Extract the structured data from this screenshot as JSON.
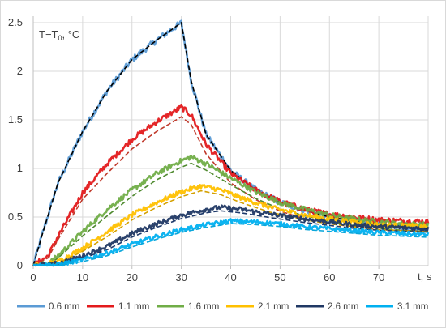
{
  "chart_data": {
    "type": "line",
    "title": "",
    "ylabel_main": "T−T",
    "ylabel_sub": "0",
    "ylabel_unit": ", °C",
    "xlabel": "t, s",
    "xlim": [
      0,
      80
    ],
    "ylim": [
      0,
      2.5
    ],
    "xticks": [
      0,
      10,
      20,
      30,
      40,
      50,
      60,
      70
    ],
    "yticks": [
      0,
      0.5,
      1,
      1.5,
      2,
      2.5
    ],
    "xtick_labels": [
      "0",
      "10",
      "20",
      "30",
      "40",
      "50",
      "60",
      "70"
    ],
    "ytick_labels": [
      "0",
      "0.5",
      "1",
      "1.5",
      "2",
      "2.5"
    ],
    "grid": true,
    "legend_position": "bottom",
    "series": [
      {
        "name": "0.6 mm",
        "color": "#5b9bd5",
        "model_color": "#000000",
        "peak": 2.5,
        "peak_t": 30.5,
        "tail": 0.38,
        "slope": 0.9,
        "rise_shape": "fast",
        "measured": [
          [
            0,
            0
          ],
          [
            2,
            0.35
          ],
          [
            5,
            0.85
          ],
          [
            10,
            1.38
          ],
          [
            15,
            1.8
          ],
          [
            20,
            2.12
          ],
          [
            25,
            2.32
          ],
          [
            30,
            2.5
          ],
          [
            32,
            1.9
          ],
          [
            35,
            1.35
          ],
          [
            40,
            0.98
          ],
          [
            45,
            0.78
          ],
          [
            50,
            0.65
          ],
          [
            55,
            0.57
          ],
          [
            60,
            0.5
          ],
          [
            65,
            0.46
          ],
          [
            70,
            0.43
          ],
          [
            75,
            0.4
          ],
          [
            80,
            0.38
          ]
        ]
      },
      {
        "name": "1.1 mm",
        "color": "#e31a1c",
        "model_color": "#c0392b",
        "peak": 1.65,
        "peak_t": 31,
        "tail": 0.45,
        "measured": [
          [
            0,
            0
          ],
          [
            3,
            0.1
          ],
          [
            5,
            0.3
          ],
          [
            10,
            0.75
          ],
          [
            15,
            1.05
          ],
          [
            20,
            1.3
          ],
          [
            25,
            1.48
          ],
          [
            30,
            1.63
          ],
          [
            32,
            1.55
          ],
          [
            35,
            1.25
          ],
          [
            40,
            0.95
          ],
          [
            45,
            0.78
          ],
          [
            50,
            0.66
          ],
          [
            55,
            0.58
          ],
          [
            60,
            0.53
          ],
          [
            65,
            0.5
          ],
          [
            70,
            0.47
          ],
          [
            75,
            0.46
          ],
          [
            80,
            0.45
          ]
        ]
      },
      {
        "name": "1.6 mm",
        "color": "#70ad47",
        "model_color": "#4f8a2f",
        "peak": 1.12,
        "peak_t": 32,
        "measured": [
          [
            0,
            0
          ],
          [
            3,
            0.02
          ],
          [
            5,
            0.1
          ],
          [
            10,
            0.35
          ],
          [
            15,
            0.58
          ],
          [
            20,
            0.78
          ],
          [
            25,
            0.95
          ],
          [
            30,
            1.08
          ],
          [
            32,
            1.12
          ],
          [
            35,
            1.05
          ],
          [
            40,
            0.9
          ],
          [
            45,
            0.76
          ],
          [
            50,
            0.65
          ],
          [
            55,
            0.58
          ],
          [
            60,
            0.52
          ],
          [
            65,
            0.48
          ],
          [
            70,
            0.45
          ],
          [
            75,
            0.43
          ],
          [
            80,
            0.42
          ]
        ]
      },
      {
        "name": "2.1 mm",
        "color": "#ffc000",
        "model_color": "#d4a000",
        "peak": 0.83,
        "peak_t": 34,
        "measured": [
          [
            0,
            0
          ],
          [
            5,
            0.04
          ],
          [
            10,
            0.18
          ],
          [
            15,
            0.35
          ],
          [
            20,
            0.52
          ],
          [
            25,
            0.65
          ],
          [
            30,
            0.76
          ],
          [
            34,
            0.82
          ],
          [
            38,
            0.78
          ],
          [
            42,
            0.7
          ],
          [
            48,
            0.6
          ],
          [
            55,
            0.52
          ],
          [
            60,
            0.48
          ],
          [
            65,
            0.45
          ],
          [
            70,
            0.42
          ],
          [
            75,
            0.41
          ],
          [
            80,
            0.4
          ]
        ]
      },
      {
        "name": "2.6 mm",
        "color": "#203864",
        "model_color": "#1f3a6b",
        "peak": 0.6,
        "peak_t": 37,
        "measured": [
          [
            0,
            0
          ],
          [
            5,
            0.02
          ],
          [
            10,
            0.1
          ],
          [
            15,
            0.2
          ],
          [
            20,
            0.33
          ],
          [
            25,
            0.43
          ],
          [
            30,
            0.52
          ],
          [
            35,
            0.58
          ],
          [
            38,
            0.6
          ],
          [
            42,
            0.58
          ],
          [
            48,
            0.53
          ],
          [
            55,
            0.48
          ],
          [
            60,
            0.45
          ],
          [
            65,
            0.42
          ],
          [
            70,
            0.4
          ],
          [
            75,
            0.39
          ],
          [
            80,
            0.38
          ]
        ]
      },
      {
        "name": "3.1 mm",
        "color": "#00b0f0",
        "model_color": "#0aa6da",
        "peak": 0.46,
        "peak_t": 40,
        "measured": [
          [
            0,
            0
          ],
          [
            5,
            0.01
          ],
          [
            10,
            0.06
          ],
          [
            15,
            0.13
          ],
          [
            20,
            0.22
          ],
          [
            25,
            0.3
          ],
          [
            30,
            0.37
          ],
          [
            35,
            0.42
          ],
          [
            40,
            0.46
          ],
          [
            45,
            0.45
          ],
          [
            50,
            0.43
          ],
          [
            55,
            0.4
          ],
          [
            60,
            0.38
          ],
          [
            65,
            0.36
          ],
          [
            70,
            0.34
          ],
          [
            75,
            0.33
          ],
          [
            80,
            0.32
          ]
        ]
      }
    ]
  }
}
